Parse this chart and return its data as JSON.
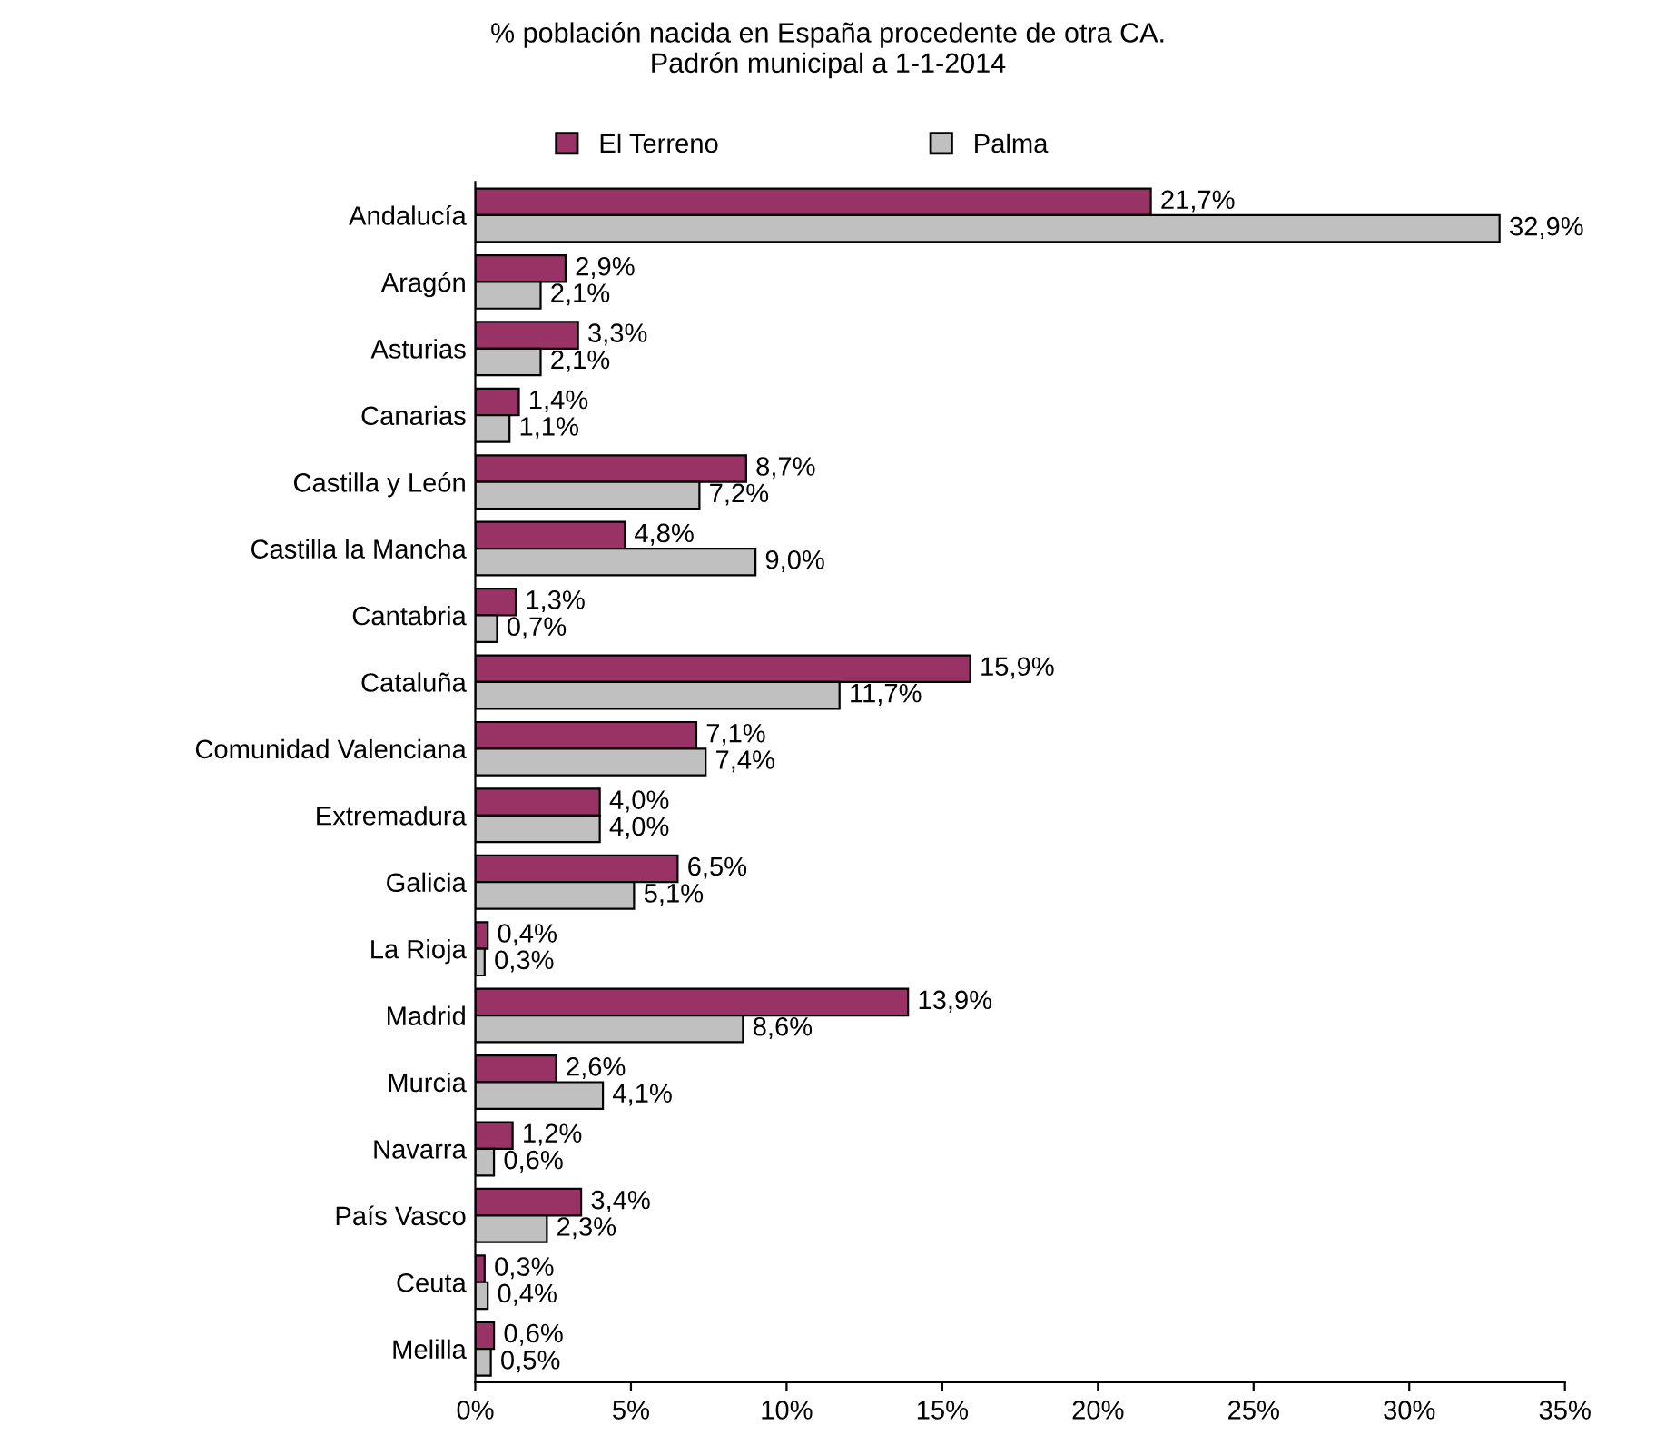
{
  "chart_data": {
    "type": "bar",
    "orientation": "horizontal",
    "title": "% población nacida en España procedente de otra CA.\nPadrón municipal a 1-1-2014",
    "categories": [
      "Andalucía",
      "Aragón",
      "Asturias",
      "Canarias",
      "Castilla y León",
      "Castilla la Mancha",
      "Cantabria",
      "Cataluña",
      "Comunidad Valenciana",
      "Extremadura",
      "Galicia",
      "La Rioja",
      "Madrid",
      "Murcia",
      "Navarra",
      "País Vasco",
      "Ceuta",
      "Melilla"
    ],
    "series": [
      {
        "name": "El Terreno",
        "color": "#993366",
        "values": [
          21.7,
          2.9,
          3.3,
          1.4,
          8.7,
          4.8,
          1.3,
          15.9,
          7.1,
          4.0,
          6.5,
          0.4,
          13.9,
          2.6,
          1.2,
          3.4,
          0.3,
          0.6
        ],
        "value_labels": [
          "21,7%",
          "2,9%",
          "3,3%",
          "1,4%",
          "8,7%",
          "4,8%",
          "1,3%",
          "15,9%",
          "7,1%",
          "4,0%",
          "6,5%",
          "0,4%",
          "13,9%",
          "2,6%",
          "1,2%",
          "3,4%",
          "0,3%",
          "0,6%"
        ]
      },
      {
        "name": "Palma",
        "color": "#c0c0c0",
        "values": [
          32.9,
          2.1,
          2.1,
          1.1,
          7.2,
          9.0,
          0.7,
          11.7,
          7.4,
          4.0,
          5.1,
          0.3,
          8.6,
          4.1,
          0.6,
          2.3,
          0.4,
          0.5
        ],
        "value_labels": [
          "32,9%",
          "2,1%",
          "2,1%",
          "1,1%",
          "7,2%",
          "9,0%",
          "0,7%",
          "11,7%",
          "7,4%",
          "4,0%",
          "5,1%",
          "0,3%",
          "8,6%",
          "4,1%",
          "0,6%",
          "2,3%",
          "0,4%",
          "0,5%"
        ]
      }
    ],
    "xlim": [
      0,
      35
    ],
    "xticks": [
      {
        "value": 0,
        "label": "0%"
      },
      {
        "value": 5,
        "label": "5%"
      },
      {
        "value": 10,
        "label": "10%"
      },
      {
        "value": 15,
        "label": "15%"
      },
      {
        "value": 20,
        "label": "20%"
      },
      {
        "value": 25,
        "label": "25%"
      },
      {
        "value": 30,
        "label": "30%"
      },
      {
        "value": 35,
        "label": "35%"
      }
    ],
    "grid": false,
    "legend": "top"
  }
}
